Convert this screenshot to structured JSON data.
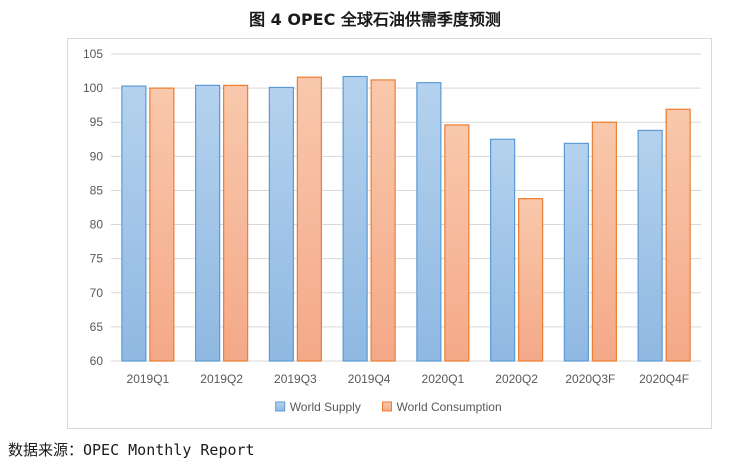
{
  "figure_title": "图 4 OPEC 全球石油供需季度预测",
  "source_note": "数据来源：OPEC Monthly Report",
  "chart_data": {
    "type": "bar",
    "title": "",
    "xlabel": "",
    "ylabel": "",
    "categories": [
      "2019Q1",
      "2019Q2",
      "2019Q3",
      "2019Q4",
      "2020Q1",
      "2020Q2",
      "2020Q3F",
      "2020Q4F"
    ],
    "series": [
      {
        "name": "World Supply",
        "values": [
          100.3,
          100.4,
          100.1,
          101.7,
          100.8,
          92.5,
          91.9,
          93.8
        ],
        "color": "#9dc3e6",
        "stroke": "#5b9bd5"
      },
      {
        "name": "World Consumption",
        "values": [
          100.0,
          100.4,
          101.6,
          101.2,
          94.6,
          83.8,
          95.0,
          96.9
        ],
        "color": "#f8bfa0",
        "stroke": "#ed7d31"
      }
    ],
    "ylim": [
      60,
      105
    ],
    "yticks": [
      60,
      65,
      70,
      75,
      80,
      85,
      90,
      95,
      100,
      105
    ],
    "grid": true,
    "legend_position": "bottom"
  }
}
